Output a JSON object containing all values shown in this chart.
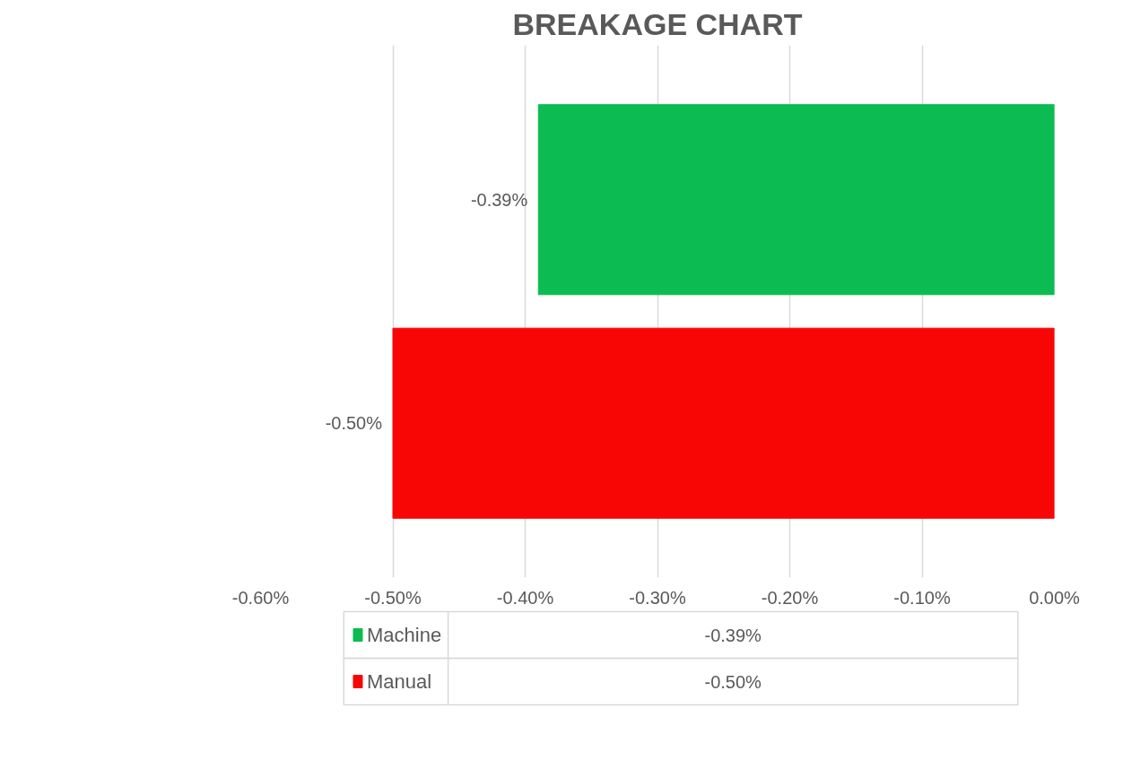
{
  "chart_data": {
    "type": "bar",
    "orientation": "horizontal",
    "title": "BREAKAGE CHART",
    "categories": [
      null
    ],
    "series": [
      {
        "name": "Machine",
        "color": "#0cbb52",
        "values": [
          -0.39
        ],
        "value_labels": [
          "-0.39%"
        ]
      },
      {
        "name": "Manual",
        "color": "#f80606",
        "values": [
          -0.5
        ],
        "value_labels": [
          "-0.50%"
        ]
      }
    ],
    "xlim": [
      -0.6,
      0
    ],
    "xticks": [
      {
        "value": -0.6,
        "label": "-0.60%"
      },
      {
        "value": -0.5,
        "label": "-0.50%"
      },
      {
        "value": -0.4,
        "label": "-0.40%"
      },
      {
        "value": -0.3,
        "label": "-0.30%"
      },
      {
        "value": -0.2,
        "label": "-0.20%"
      },
      {
        "value": -0.1,
        "label": "-0.10%"
      },
      {
        "value": 0,
        "label": "0.00%"
      }
    ],
    "grid": "x",
    "legend": "bottom"
  }
}
